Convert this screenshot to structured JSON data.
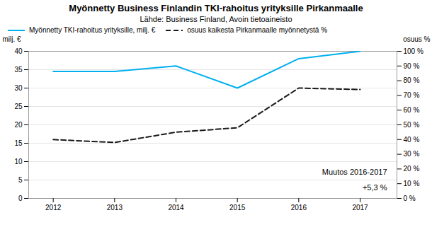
{
  "chart_data": {
    "type": "line",
    "title": "Myönnetty Business Finlandin TKI-rahoitus yrityksille Pirkanmaalle",
    "subtitle": "Lähde: Business Finland, Avoin tietoaineisto",
    "x": [
      2012,
      2013,
      2014,
      2015,
      2016,
      2017
    ],
    "series": [
      {
        "name": "Myönnetty TKI-rahoitus yrityksille, milj. €",
        "color": "#00b0f0",
        "values": [
          34.5,
          34.5,
          36.0,
          30.0,
          38.0,
          40.0
        ],
        "line_style": "solid"
      },
      {
        "name": "osuus kaikesta Pirkanmaalle myönnetystä %",
        "color": "#1a1a1a",
        "values": [
          40,
          38,
          45,
          48,
          75,
          74
        ],
        "axis": "y2",
        "line_style": "dashed"
      }
    ],
    "xlim": [
      2011.6,
      2017.6
    ],
    "xticks": [
      2012,
      2013,
      2014,
      2015,
      2016,
      2017
    ],
    "ylim": [
      0,
      40
    ],
    "yticks": [
      0,
      5,
      10,
      15,
      20,
      25,
      30,
      35,
      40
    ],
    "y2lim": [
      0,
      100
    ],
    "y2ticks": [
      {
        "value": 0,
        "label": "0 %"
      },
      {
        "value": 10,
        "label": "10 %"
      },
      {
        "value": 20,
        "label": "20 %"
      },
      {
        "value": 30,
        "label": "30 %"
      },
      {
        "value": 40,
        "label": "40 %"
      },
      {
        "value": 50,
        "label": "50 %"
      },
      {
        "value": 60,
        "label": "60 %"
      },
      {
        "value": 70,
        "label": "70 %"
      },
      {
        "value": 80,
        "label": "80 %"
      },
      {
        "value": 90,
        "label": "90 %"
      },
      {
        "value": 100,
        "label": "100 %"
      }
    ],
    "ylabel": "milj. €",
    "y2label": "osuus %",
    "annotation": "Muutos 2016-2017\n\n+5,3 %",
    "grid": true
  }
}
